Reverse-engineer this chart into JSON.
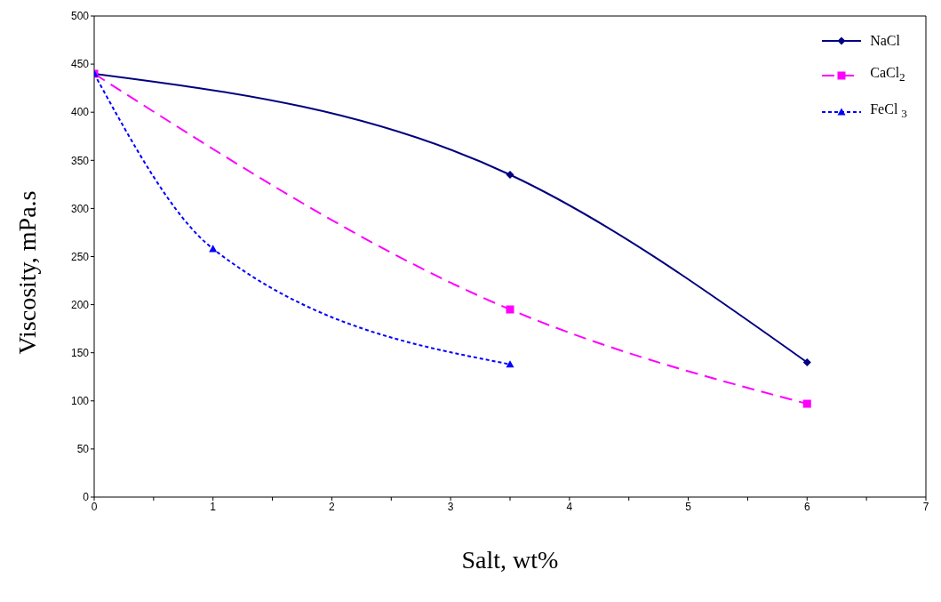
{
  "chart_data": {
    "type": "line",
    "xlabel": "Salt, wt%",
    "ylabel": "Viscosity, mPa.s",
    "xlim": [
      0,
      7
    ],
    "xticks": [
      0,
      {
        "value": 0.5,
        "label": null
      },
      1,
      {
        "value": 1.5,
        "label": null
      },
      2,
      {
        "value": 2.5,
        "label": null
      },
      3,
      {
        "value": 3.5,
        "label": null
      },
      4,
      {
        "value": 4.5,
        "label": null
      },
      5,
      {
        "value": 5.5,
        "label": null
      },
      6,
      {
        "value": 6.5,
        "label": null
      },
      7
    ],
    "ylim": [
      0,
      500
    ],
    "yticks": [
      0,
      50,
      100,
      150,
      200,
      250,
      300,
      350,
      400,
      450,
      500
    ],
    "grid": false,
    "legend": "top right",
    "series": [
      {
        "name": "NaCl",
        "color": "#000080",
        "x": [
          0,
          3.5,
          6
        ],
        "values": [
          440,
          335,
          140
        ],
        "marker": "diamond",
        "line_style": "solid"
      },
      {
        "name": "CaCl$_{2}$",
        "color": "#ff00ff",
        "x": [
          0,
          3.5,
          6
        ],
        "values": [
          440,
          195,
          97
        ],
        "marker": "square",
        "line_style": "dashed"
      },
      {
        "name": "FeCl $_{3}$",
        "color": "#0000ff",
        "x": [
          0,
          1,
          3.5
        ],
        "values": [
          440,
          258,
          138
        ],
        "marker": "triangle",
        "line_style": "dotted"
      }
    ]
  }
}
